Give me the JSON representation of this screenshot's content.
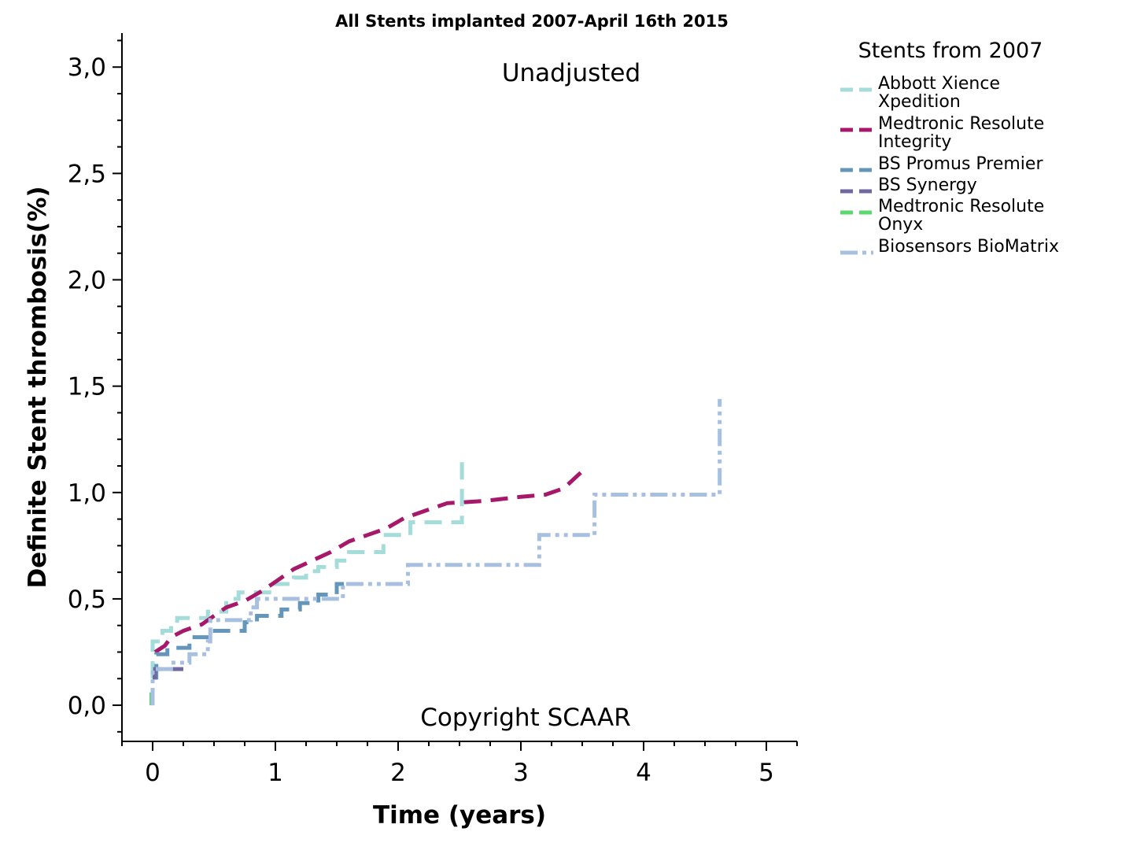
{
  "chart_data": {
    "type": "line",
    "title": "All Stents implanted 2007-April 16th 2015",
    "annotations": [
      "Unadjusted",
      "Copyright SCAAR"
    ],
    "xlabel": "Time (years)",
    "ylabel": "Definite Stent thrombosis(%)",
    "xlim": [
      -0.25,
      5.25
    ],
    "ylim": [
      -0.17,
      3.16
    ],
    "x_ticks": [
      0,
      1,
      2,
      3,
      4,
      5
    ],
    "x_tick_labels": [
      "0",
      "1",
      "2",
      "3",
      "4",
      "5"
    ],
    "y_ticks": [
      0,
      0.5,
      1.0,
      1.5,
      2.0,
      2.5,
      3.0
    ],
    "y_tick_labels": [
      "0,0",
      "0,5",
      "1,0",
      "1,5",
      "2,0",
      "2,5",
      "3,0"
    ],
    "grid": false,
    "legend": {
      "title": "Stents from 2007",
      "placement": "right"
    },
    "series": [
      {
        "name": "Abbott Xience Xpedition",
        "color": "#a3dcd8",
        "dash": "dashed",
        "points": [
          [
            0,
            0
          ],
          [
            0,
            0.3
          ],
          [
            0.08,
            0.3
          ],
          [
            0.08,
            0.35
          ],
          [
            0.15,
            0.35
          ],
          [
            0.15,
            0.38
          ],
          [
            0.2,
            0.38
          ],
          [
            0.2,
            0.41
          ],
          [
            0.45,
            0.41
          ],
          [
            0.45,
            0.44
          ],
          [
            0.6,
            0.44
          ],
          [
            0.6,
            0.5
          ],
          [
            0.7,
            0.5
          ],
          [
            0.7,
            0.53
          ],
          [
            0.95,
            0.53
          ],
          [
            0.95,
            0.57
          ],
          [
            1.15,
            0.57
          ],
          [
            1.15,
            0.6
          ],
          [
            1.25,
            0.6
          ],
          [
            1.25,
            0.63
          ],
          [
            1.35,
            0.63
          ],
          [
            1.35,
            0.65
          ],
          [
            1.5,
            0.65
          ],
          [
            1.5,
            0.68
          ],
          [
            1.6,
            0.68
          ],
          [
            1.6,
            0.72
          ],
          [
            1.88,
            0.72
          ],
          [
            1.88,
            0.8
          ],
          [
            2.1,
            0.8
          ],
          [
            2.1,
            0.86
          ],
          [
            2.52,
            0.86
          ],
          [
            2.52,
            1.18
          ]
        ]
      },
      {
        "name": "Medtronic Resolute Integrity",
        "color": "#a8186a",
        "dash": "dashed",
        "points": [
          [
            0.02,
            0.25
          ],
          [
            0.1,
            0.28
          ],
          [
            0.15,
            0.32
          ],
          [
            0.25,
            0.35
          ],
          [
            0.4,
            0.38
          ],
          [
            0.5,
            0.42
          ],
          [
            0.6,
            0.46
          ],
          [
            0.75,
            0.49
          ],
          [
            0.9,
            0.54
          ],
          [
            1.0,
            0.58
          ],
          [
            1.15,
            0.64
          ],
          [
            1.3,
            0.68
          ],
          [
            1.45,
            0.72
          ],
          [
            1.6,
            0.77
          ],
          [
            1.75,
            0.8
          ],
          [
            1.9,
            0.83
          ],
          [
            2.05,
            0.88
          ],
          [
            2.25,
            0.92
          ],
          [
            2.4,
            0.95
          ],
          [
            2.7,
            0.96
          ],
          [
            3.0,
            0.98
          ],
          [
            3.2,
            0.99
          ],
          [
            3.35,
            1.02
          ],
          [
            3.5,
            1.1
          ]
        ]
      },
      {
        "name": "BS Promus Premier",
        "color": "#6496bc",
        "dash": "dashed",
        "points": [
          [
            0,
            0.13
          ],
          [
            0.03,
            0.13
          ],
          [
            0.03,
            0.24
          ],
          [
            0.12,
            0.24
          ],
          [
            0.12,
            0.27
          ],
          [
            0.3,
            0.27
          ],
          [
            0.3,
            0.32
          ],
          [
            0.45,
            0.32
          ],
          [
            0.45,
            0.35
          ],
          [
            0.75,
            0.35
          ],
          [
            0.75,
            0.39
          ],
          [
            0.85,
            0.39
          ],
          [
            0.85,
            0.42
          ],
          [
            1.05,
            0.42
          ],
          [
            1.05,
            0.45
          ],
          [
            1.2,
            0.45
          ],
          [
            1.2,
            0.48
          ],
          [
            1.35,
            0.48
          ],
          [
            1.35,
            0.52
          ],
          [
            1.5,
            0.52
          ],
          [
            1.5,
            0.57
          ],
          [
            1.6,
            0.57
          ]
        ]
      },
      {
        "name": "BS Synergy",
        "color": "#7068a0",
        "dash": "dashed",
        "points": [
          [
            0,
            0.13
          ],
          [
            0.02,
            0.13
          ],
          [
            0.02,
            0.17
          ],
          [
            0.25,
            0.17
          ]
        ]
      },
      {
        "name": "Medtronic Resolute Onyx",
        "color": "#5cd870",
        "dash": "dashed",
        "points": [
          [
            -0.01,
            0
          ],
          [
            -0.01,
            0.06
          ]
        ]
      },
      {
        "name": "Biosensors BioMatrix",
        "color": "#a8c0e0",
        "dash": "dash-dot-dot",
        "points": [
          [
            0,
            0
          ],
          [
            0,
            0.17
          ],
          [
            0.15,
            0.17
          ],
          [
            0.15,
            0.2
          ],
          [
            0.3,
            0.2
          ],
          [
            0.3,
            0.24
          ],
          [
            0.45,
            0.24
          ],
          [
            0.45,
            0.3
          ],
          [
            0.47,
            0.3
          ],
          [
            0.47,
            0.4
          ],
          [
            0.8,
            0.4
          ],
          [
            0.8,
            0.46
          ],
          [
            0.85,
            0.46
          ],
          [
            0.85,
            0.5
          ],
          [
            1.55,
            0.5
          ],
          [
            1.55,
            0.57
          ],
          [
            2.08,
            0.57
          ],
          [
            2.08,
            0.66
          ],
          [
            3.15,
            0.66
          ],
          [
            3.15,
            0.8
          ],
          [
            3.6,
            0.8
          ],
          [
            3.6,
            0.99
          ],
          [
            4.62,
            0.99
          ],
          [
            4.62,
            1.44
          ]
        ]
      }
    ]
  }
}
